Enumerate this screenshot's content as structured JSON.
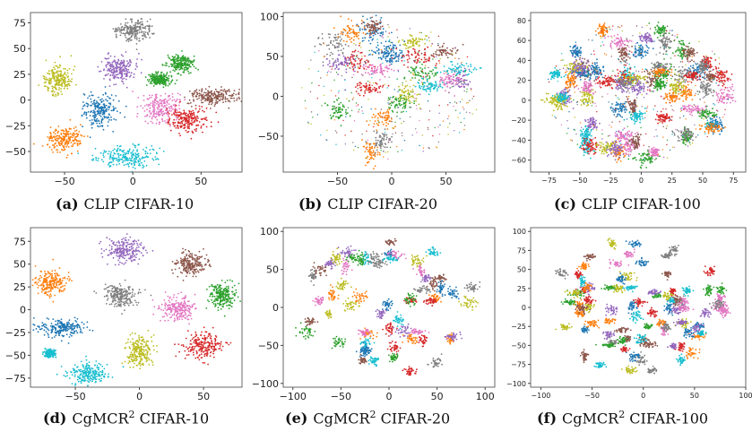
{
  "palette": [
    "#1f77b4",
    "#ff7f0e",
    "#2ca02c",
    "#d62728",
    "#9467bd",
    "#8c564b",
    "#e377c2",
    "#7f7f7f",
    "#bcbd22",
    "#17becf"
  ],
  "chart_data": [
    {
      "type": "scatter",
      "caption_label": "(a)",
      "caption_text": "CLIP CIFAR-10",
      "xticks": [
        -50,
        0,
        50
      ],
      "yticks": [
        -50,
        -25,
        0,
        25,
        50,
        75
      ],
      "xlim": [
        -75,
        80
      ],
      "ylim": [
        -70,
        85
      ],
      "clusters": [
        {
          "x": 0,
          "y": 68,
          "sx": 6,
          "sy": 5,
          "color": 7
        },
        {
          "x": -55,
          "y": 20,
          "sx": 5,
          "sy": 7,
          "color": 8
        },
        {
          "x": -10,
          "y": 30,
          "sx": 6,
          "sy": 6,
          "color": 4
        },
        {
          "x": -25,
          "y": -10,
          "sx": 6,
          "sy": 8,
          "color": 0
        },
        {
          "x": 35,
          "y": 35,
          "sx": 5,
          "sy": 4,
          "color": 2
        },
        {
          "x": 20,
          "y": 20,
          "sx": 4,
          "sy": 3,
          "color": 2
        },
        {
          "x": 20,
          "y": -8,
          "sx": 7,
          "sy": 7,
          "color": 6
        },
        {
          "x": 60,
          "y": 3,
          "sx": 9,
          "sy": 4,
          "color": 5
        },
        {
          "x": 40,
          "y": -20,
          "sx": 7,
          "sy": 6,
          "color": 3
        },
        {
          "x": -50,
          "y": -38,
          "sx": 6,
          "sy": 6,
          "color": 1
        },
        {
          "x": -5,
          "y": -55,
          "sx": 12,
          "sy": 5,
          "color": 9
        }
      ]
    },
    {
      "type": "scatter",
      "caption_label": "(b)",
      "caption_text": "CLIP CIFAR-20",
      "xticks": [
        -50,
        0,
        50
      ],
      "yticks": [
        -50,
        0,
        50,
        100
      ],
      "xlim": [
        -100,
        95
      ],
      "ylim": [
        -95,
        105
      ],
      "clusters": "random-20"
    },
    {
      "type": "scatter",
      "caption_label": "(c)",
      "caption_text": "CLIP CIFAR-100",
      "xticks": [
        -75,
        -50,
        -25,
        0,
        25,
        50,
        75
      ],
      "yticks": [
        -60,
        -40,
        -20,
        0,
        20,
        40,
        60,
        80
      ],
      "xlim": [
        -90,
        85
      ],
      "ylim": [
        -72,
        88
      ],
      "clusters": "random-100"
    },
    {
      "type": "scatter",
      "caption_label": "(d)",
      "caption_text": "CgMCR",
      "caption_sup": "2",
      "caption_after": "CIFAR-10",
      "xticks": [
        -50,
        0,
        50
      ],
      "yticks": [
        -75,
        -50,
        -25,
        0,
        25,
        50,
        75
      ],
      "xlim": [
        -85,
        80
      ],
      "ylim": [
        -85,
        90
      ],
      "clusters": [
        {
          "x": -12,
          "y": 65,
          "sx": 7,
          "sy": 6,
          "color": 4
        },
        {
          "x": 40,
          "y": 50,
          "sx": 6,
          "sy": 6,
          "color": 5
        },
        {
          "x": -70,
          "y": 30,
          "sx": 6,
          "sy": 7,
          "color": 1
        },
        {
          "x": -15,
          "y": 15,
          "sx": 7,
          "sy": 6,
          "color": 7
        },
        {
          "x": 65,
          "y": 15,
          "sx": 5,
          "sy": 7,
          "color": 2
        },
        {
          "x": 30,
          "y": 0,
          "sx": 7,
          "sy": 7,
          "color": 6
        },
        {
          "x": -60,
          "y": -20,
          "sx": 9,
          "sy": 5,
          "color": 0
        },
        {
          "x": 0,
          "y": -45,
          "sx": 5,
          "sy": 8,
          "color": 8
        },
        {
          "x": 50,
          "y": -40,
          "sx": 8,
          "sy": 7,
          "color": 3
        },
        {
          "x": -40,
          "y": -70,
          "sx": 8,
          "sy": 6,
          "color": 9
        },
        {
          "x": -70,
          "y": -48,
          "sx": 2,
          "sy": 2,
          "color": 9
        }
      ]
    },
    {
      "type": "scatter",
      "caption_label": "(e)",
      "caption_text": "CgMCR",
      "caption_sup": "2",
      "caption_after": "CIFAR-20",
      "xticks": [
        -100,
        -50,
        0,
        50,
        100
      ],
      "yticks": [
        -100,
        -50,
        0,
        50,
        100
      ],
      "xlim": [
        -110,
        110
      ],
      "ylim": [
        -105,
        105
      ],
      "clusters": "random-20b"
    },
    {
      "type": "scatter",
      "caption_label": "(f)",
      "caption_text": "CgMCR",
      "caption_sup": "2",
      "caption_after": "CIFAR-100",
      "xticks": [
        -100,
        -50,
        0,
        50,
        100
      ],
      "yticks": [
        -100,
        -75,
        -50,
        -25,
        0,
        25,
        50,
        75,
        100
      ],
      "xlim": [
        -110,
        100
      ],
      "ylim": [
        -105,
        105
      ],
      "clusters": "random-100b"
    }
  ]
}
